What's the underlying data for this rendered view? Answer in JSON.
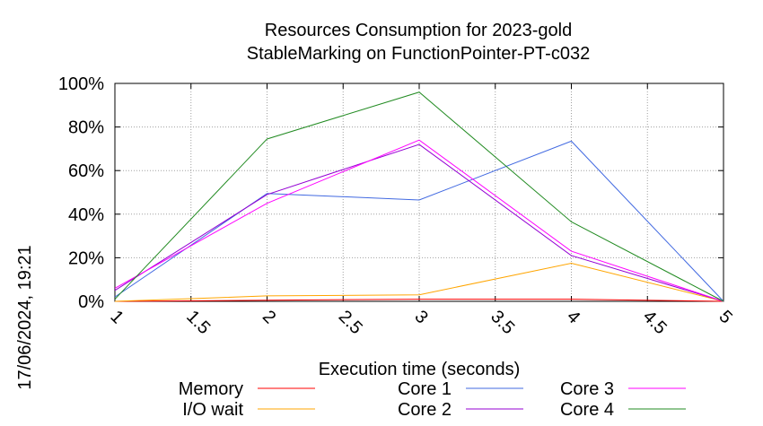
{
  "chart_data": {
    "type": "line",
    "title": "Resources Consumption for 2023-gold",
    "subtitle": "StableMarking on FunctionPointer-PT-c032",
    "xlabel": "Execution time (seconds)",
    "ylabel": "",
    "timestamp": "17/06/2024, 19:21",
    "xlim": [
      1,
      5
    ],
    "ylim": [
      0,
      100
    ],
    "x_ticks": [
      "1",
      "1.5",
      "2",
      "2.5",
      "3",
      "3.5",
      "4",
      "4.5",
      "5"
    ],
    "y_ticks": [
      "0%",
      "20%",
      "40%",
      "60%",
      "80%",
      "100%"
    ],
    "grid": true,
    "legend_position": "bottom",
    "x": [
      1,
      2,
      3,
      4,
      5
    ],
    "series": [
      {
        "name": "Memory",
        "color": "#ff0000",
        "values": [
          0,
          0.5,
          1,
          1,
          0
        ]
      },
      {
        "name": "I/O wait",
        "color": "#ffa500",
        "values": [
          0,
          2.5,
          3,
          17.5,
          0
        ]
      },
      {
        "name": "Core 1",
        "color": "#4169e1",
        "values": [
          2,
          49.5,
          46.5,
          73.5,
          0
        ]
      },
      {
        "name": "Core 2",
        "color": "#9400d3",
        "values": [
          5,
          49,
          72,
          21,
          0
        ]
      },
      {
        "name": "Core 3",
        "color": "#ff00ff",
        "values": [
          6,
          45,
          74,
          23,
          0
        ]
      },
      {
        "name": "Core 4",
        "color": "#228b22",
        "values": [
          1,
          74.5,
          96,
          36.5,
          0
        ]
      }
    ]
  }
}
